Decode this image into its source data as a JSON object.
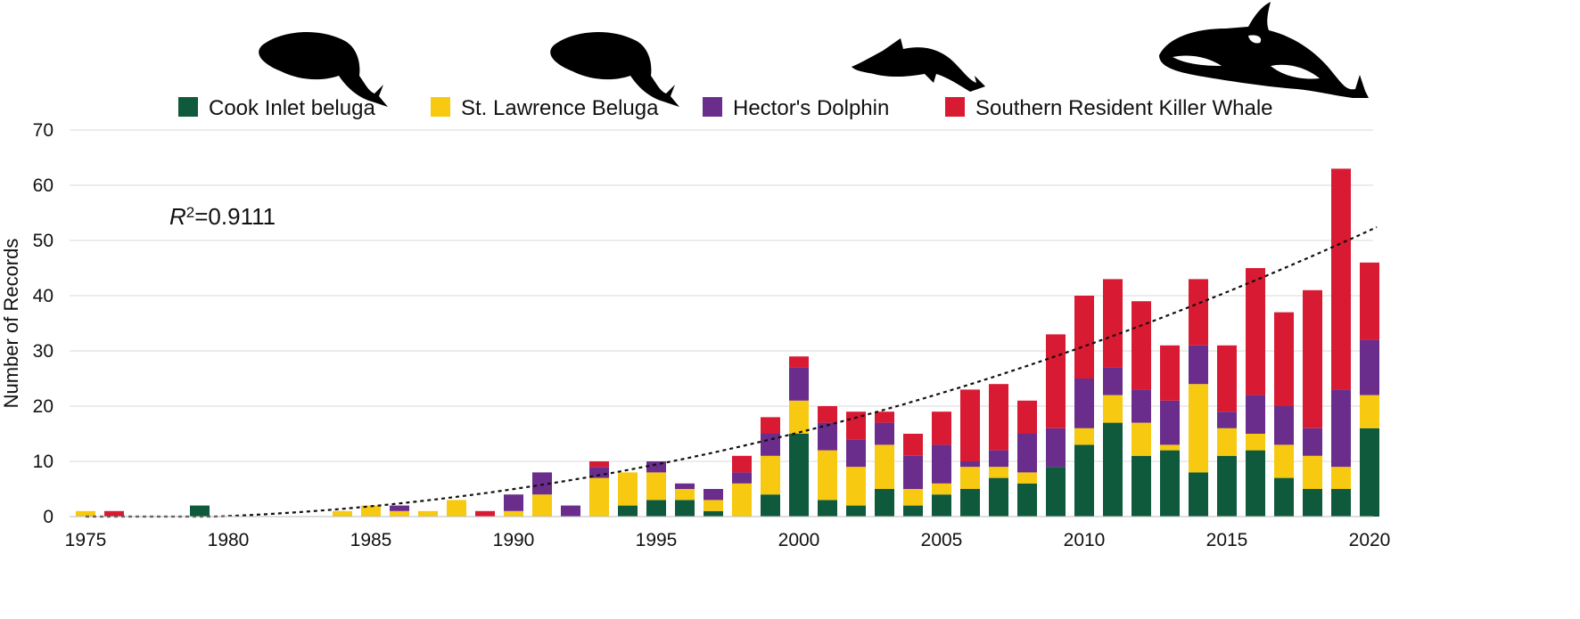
{
  "chart_data": {
    "type": "bar",
    "stacked": true,
    "title": "",
    "xlabel": "",
    "ylabel": "Number of Records",
    "ylim": [
      0,
      70
    ],
    "yticks": [
      0,
      10,
      20,
      30,
      40,
      50,
      60,
      70
    ],
    "xticks": [
      "1975",
      "1980",
      "1985",
      "1990",
      "1995",
      "2000",
      "2005",
      "2010",
      "2015",
      "2020"
    ],
    "grid": "horizontal",
    "legend_position": "top",
    "annotation": {
      "prefix": "R",
      "sup": "2",
      "value": "=0.9111"
    },
    "trendline": {
      "style": "dotted",
      "color": "#111111"
    },
    "categories": [
      "1975",
      "1976",
      "1977",
      "1978",
      "1979",
      "1980",
      "1981",
      "1982",
      "1983",
      "1984",
      "1985",
      "1986",
      "1987",
      "1988",
      "1989",
      "1990",
      "1991",
      "1992",
      "1993",
      "1994",
      "1995",
      "1996",
      "1997",
      "1998",
      "1999",
      "2000",
      "2001",
      "2002",
      "2003",
      "2004",
      "2005",
      "2006",
      "2007",
      "2008",
      "2009",
      "2010",
      "2011",
      "2012",
      "2013",
      "2014",
      "2015",
      "2016",
      "2017",
      "2018",
      "2019",
      "2020"
    ],
    "series": [
      {
        "name": "Cook Inlet beluga",
        "color": "#0f5a3c",
        "values": [
          0,
          0,
          0,
          0,
          2,
          0,
          0,
          0,
          0,
          0,
          0,
          0,
          0,
          0,
          0,
          0,
          0,
          0,
          0,
          2,
          3,
          3,
          1,
          0,
          4,
          15,
          3,
          2,
          5,
          2,
          4,
          5,
          7,
          6,
          9,
          13,
          17,
          11,
          12,
          8,
          11,
          12,
          7,
          5,
          5,
          16
        ]
      },
      {
        "name": "St. Lawrence Beluga",
        "color": "#f7c910",
        "values": [
          1,
          0,
          0,
          0,
          0,
          0,
          0,
          0,
          0,
          1,
          2,
          1,
          1,
          3,
          0,
          1,
          4,
          0,
          7,
          6,
          5,
          2,
          2,
          6,
          7,
          6,
          9,
          7,
          8,
          3,
          2,
          4,
          2,
          2,
          0,
          3,
          5,
          6,
          1,
          16,
          5,
          3,
          6,
          6,
          4,
          6
        ]
      },
      {
        "name": "Hector's Dolphin",
        "color": "#6a2d8c",
        "values": [
          0,
          0,
          0,
          0,
          0,
          0,
          0,
          0,
          0,
          0,
          0,
          1,
          0,
          0,
          0,
          3,
          4,
          2,
          2,
          0,
          2,
          1,
          2,
          2,
          4,
          6,
          5,
          5,
          4,
          6,
          7,
          1,
          3,
          7,
          7,
          9,
          5,
          6,
          8,
          7,
          3,
          7,
          7,
          5,
          14,
          10
        ]
      },
      {
        "name": "Southern Resident Killer Whale",
        "color": "#d91a33",
        "values": [
          0,
          1,
          0,
          0,
          0,
          0,
          0,
          0,
          0,
          0,
          0,
          0,
          0,
          0,
          1,
          0,
          0,
          0,
          1,
          0,
          0,
          0,
          0,
          3,
          3,
          2,
          3,
          5,
          2,
          4,
          6,
          13,
          12,
          6,
          17,
          15,
          16,
          16,
          10,
          12,
          12,
          23,
          17,
          25,
          40,
          14
        ]
      }
    ],
    "icons": [
      "beluga-silhouette-icon",
      "beluga-silhouette-icon",
      "dolphin-silhouette-icon",
      "orca-silhouette-icon"
    ]
  }
}
